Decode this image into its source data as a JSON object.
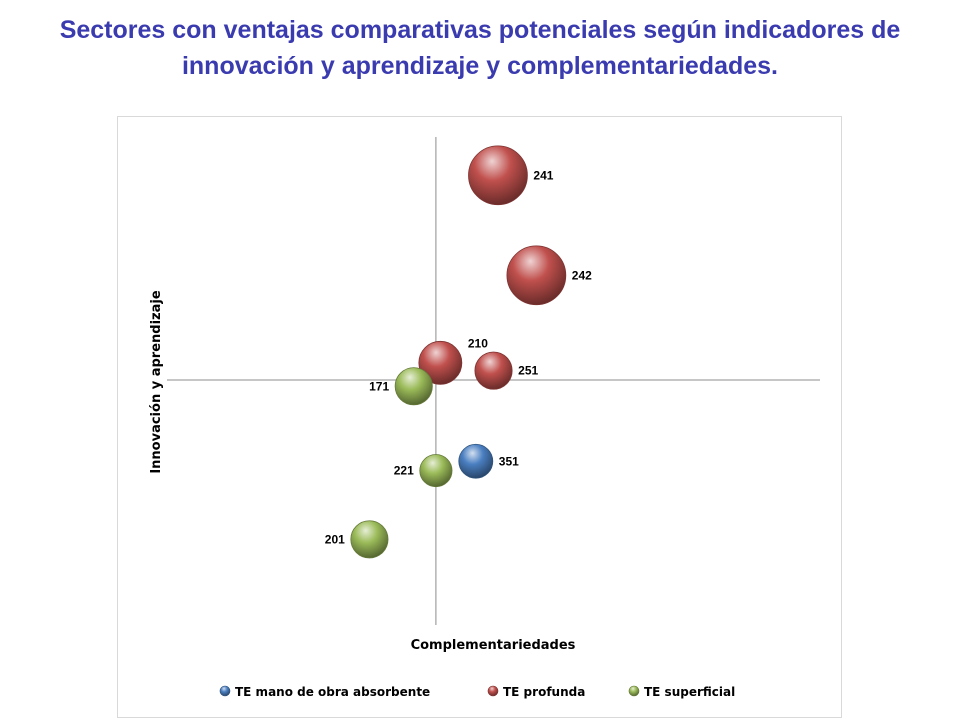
{
  "chart_data": {
    "type": "bubble",
    "title_line1": "Sectores con ventajas comparativas potenciales según indicadores de",
    "title_line2": "innovación y aprendizaje y complementariedades.",
    "xlabel": "Complementariedades",
    "ylabel": "Innovación y aprendizaje",
    "xlim": [
      -1.8,
      2.6
    ],
    "ylim": [
      -1.6,
      1.6
    ],
    "grid": false,
    "legend_position": "bottom",
    "series": [
      {
        "name": "TE mano de obra absorbente",
        "color": "#4a7fc1",
        "points": [
          {
            "label": "351",
            "x": 0.27,
            "y": -0.52,
            "size": 1.0
          }
        ]
      },
      {
        "name": "TE profunda",
        "color": "#c0504d",
        "points": [
          {
            "label": "241",
            "x": 0.42,
            "y": 1.31,
            "size": 3.0
          },
          {
            "label": "242",
            "x": 0.68,
            "y": 0.67,
            "size": 3.0
          },
          {
            "label": "210",
            "x": 0.03,
            "y": 0.11,
            "size": 1.6
          },
          {
            "label": "251",
            "x": 0.39,
            "y": 0.06,
            "size": 1.2
          }
        ]
      },
      {
        "name": "TE superficial",
        "color": "#9bbb59",
        "points": [
          {
            "label": "171",
            "x": -0.15,
            "y": -0.04,
            "size": 1.2
          },
          {
            "label": "221",
            "x": 0.0,
            "y": -0.58,
            "size": 0.9
          },
          {
            "label": "201",
            "x": -0.45,
            "y": -1.02,
            "size": 1.2
          }
        ]
      }
    ]
  }
}
